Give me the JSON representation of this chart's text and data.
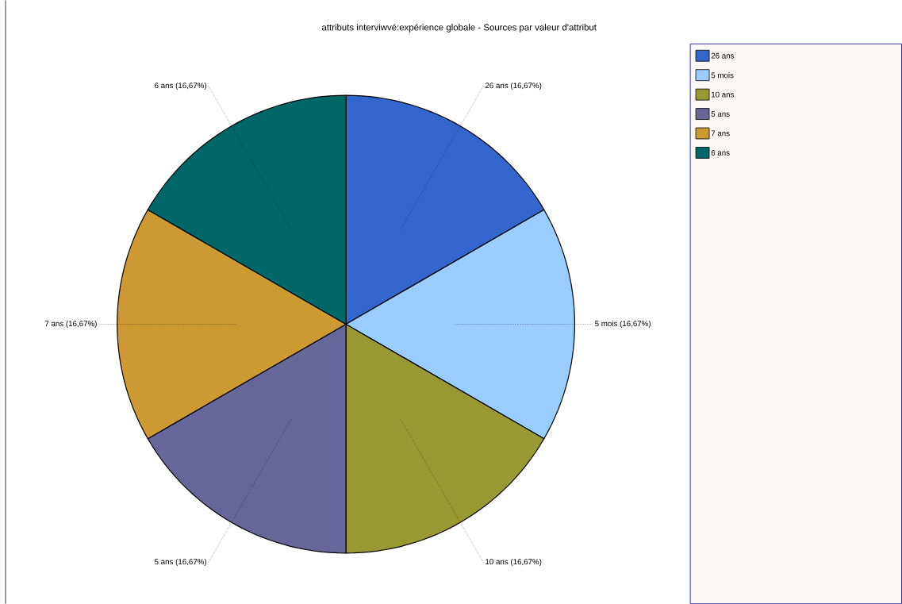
{
  "chart_data": {
    "type": "pie",
    "title": "attributs interviwvé:expérience globale - Sources par valeur d'attribut",
    "categories": [
      "26 ans",
      "5 mois",
      "10 ans",
      "5 ans",
      "7 ans",
      "6 ans"
    ],
    "values": [
      16.67,
      16.67,
      16.67,
      16.67,
      16.67,
      16.67
    ],
    "value_labels": [
      "(16,67%)",
      "(16,67%)",
      "(16,67%)",
      "(16,67%)",
      "(16,67%)",
      "(16,67%)"
    ],
    "colors": [
      "#3366cc",
      "#99ccff",
      "#999933",
      "#666699",
      "#cc9933",
      "#006666"
    ],
    "legend": "right"
  }
}
